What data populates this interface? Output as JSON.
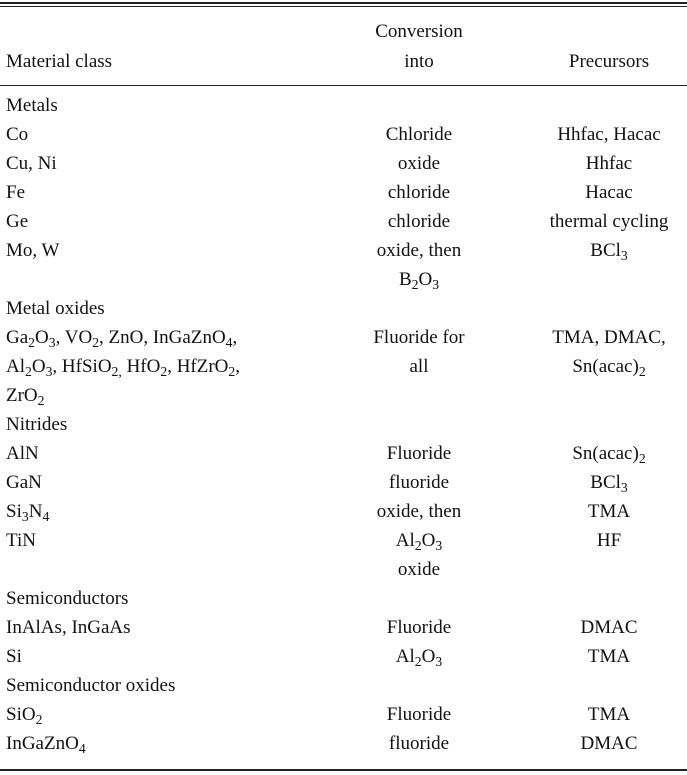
{
  "header": {
    "col1": "Material class",
    "col2_line1": "Conversion",
    "col2_line2": "into",
    "col3": "Precursors"
  },
  "rows": [
    {
      "kind": "section",
      "c1": "Metals"
    },
    {
      "c1": "Co",
      "c2": "Chloride",
      "c3": "Hhfac, Hacac"
    },
    {
      "c1": "Cu, Ni",
      "c2": "oxide",
      "c3": "Hhfac"
    },
    {
      "c1": "Fe",
      "c2": "chloride",
      "c3": "Hacac"
    },
    {
      "c1": "Ge",
      "c2": "chloride",
      "c3": "thermal cycling"
    },
    {
      "c1": "Mo, W",
      "c2": "oxide, then",
      "c3": "BCl<sub>3</sub>"
    },
    {
      "c1": "",
      "c2": "B<sub>2</sub>O<sub>3</sub>",
      "c3": ""
    },
    {
      "kind": "section",
      "c1": "Metal oxides"
    },
    {
      "c1": "Ga<sub>2</sub>O<sub>3</sub>, VO<sub>2</sub>, ZnO, InGaZnO<sub>4</sub>,",
      "c2": "Fluoride for",
      "c3": "TMA, DMAC,"
    },
    {
      "c1": "Al<sub>2</sub>O<sub>3</sub>, HfSiO<sub>2,</sub> HfO<sub>2</sub>, HfZrO<sub>2</sub>,",
      "c2": "all",
      "c3": "Sn(acac)<sub>2</sub>"
    },
    {
      "c1": "ZrO<sub>2</sub>",
      "c2": "",
      "c3": ""
    },
    {
      "kind": "section",
      "c1": "Nitrides"
    },
    {
      "c1": "AlN",
      "c2": "Fluoride",
      "c3": "Sn(acac)<sub>2</sub>"
    },
    {
      "c1": "GaN",
      "c2": "fluoride",
      "c3": "BCl<sub>3</sub>"
    },
    {
      "c1": "Si<sub>3</sub>N<sub>4</sub>",
      "c2": "oxide, then",
      "c3": "TMA"
    },
    {
      "c1": "TiN",
      "c2": "Al<sub>2</sub>O<sub>3</sub>",
      "c3": "HF"
    },
    {
      "c1": "",
      "c2": "oxide",
      "c3": ""
    },
    {
      "kind": "section",
      "c1": "Semiconductors"
    },
    {
      "c1": "InAlAs, InGaAs",
      "c2": "Fluoride",
      "c3": "DMAC"
    },
    {
      "c1": "Si",
      "c2": "Al<sub>2</sub>O<sub>3</sub>",
      "c3": "TMA"
    },
    {
      "kind": "section",
      "c1": "Semiconductor oxides"
    },
    {
      "c1": "SiO<sub>2</sub>",
      "c2": "Fluoride",
      "c3": "TMA"
    },
    {
      "c1": "InGaZnO<sub>4</sub>",
      "c2": "fluoride",
      "c3": "DMAC"
    }
  ]
}
